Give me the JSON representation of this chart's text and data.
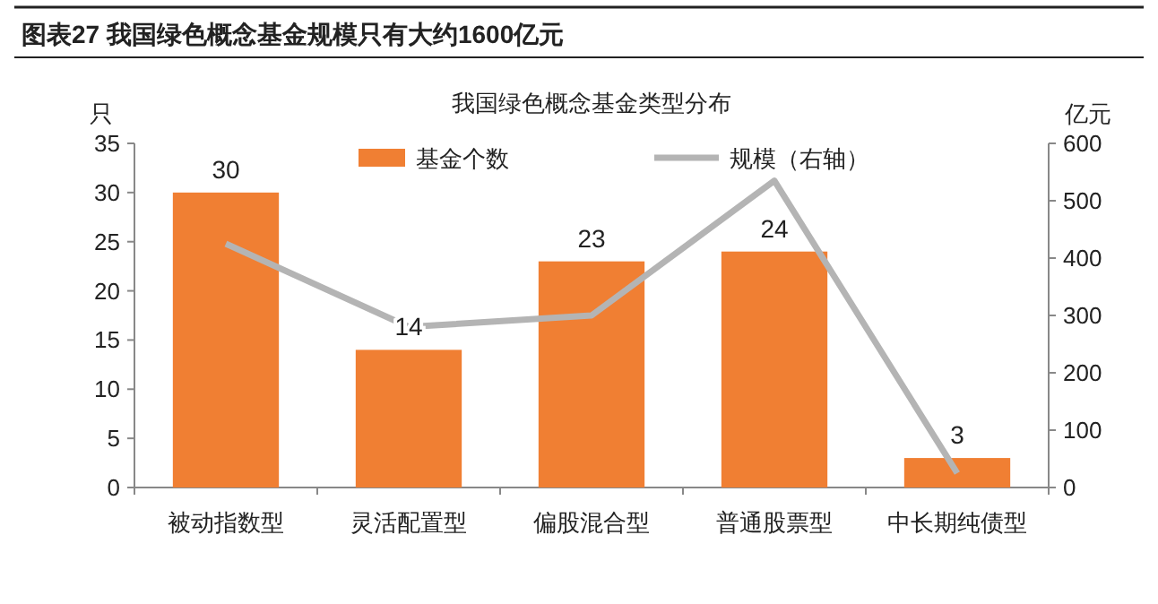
{
  "chart_data": {
    "type": "bar",
    "title": "图表27    我国绿色概念基金规模只有大约1600亿元",
    "subtitle": "我国绿色概念基金类型分布",
    "ylabel": "只",
    "y2label": "亿元",
    "categories": [
      "被动指数型",
      "灵活配置型",
      "偏股混合型",
      "普通股票型",
      "中长期纯债型"
    ],
    "series": [
      {
        "name": "基金个数",
        "color": "#f07f33",
        "values": [
          30,
          14,
          23,
          24,
          3
        ],
        "value_labels": [
          "30",
          "14",
          "23",
          "24",
          "3"
        ]
      },
      {
        "name": "规模（右轴）",
        "type": "line",
        "axis": "y2",
        "color": "#b4b4b4",
        "values": [
          425,
          280,
          300,
          535,
          25
        ]
      }
    ],
    "ylim": [
      0,
      35
    ],
    "yticks": [
      0,
      5,
      10,
      15,
      20,
      25,
      30,
      35
    ],
    "y2lim": [
      0,
      600
    ],
    "y2ticks": [
      0,
      100,
      200,
      300,
      400,
      500,
      600
    ],
    "legend": "top",
    "grid": false,
    "marker": "none"
  }
}
